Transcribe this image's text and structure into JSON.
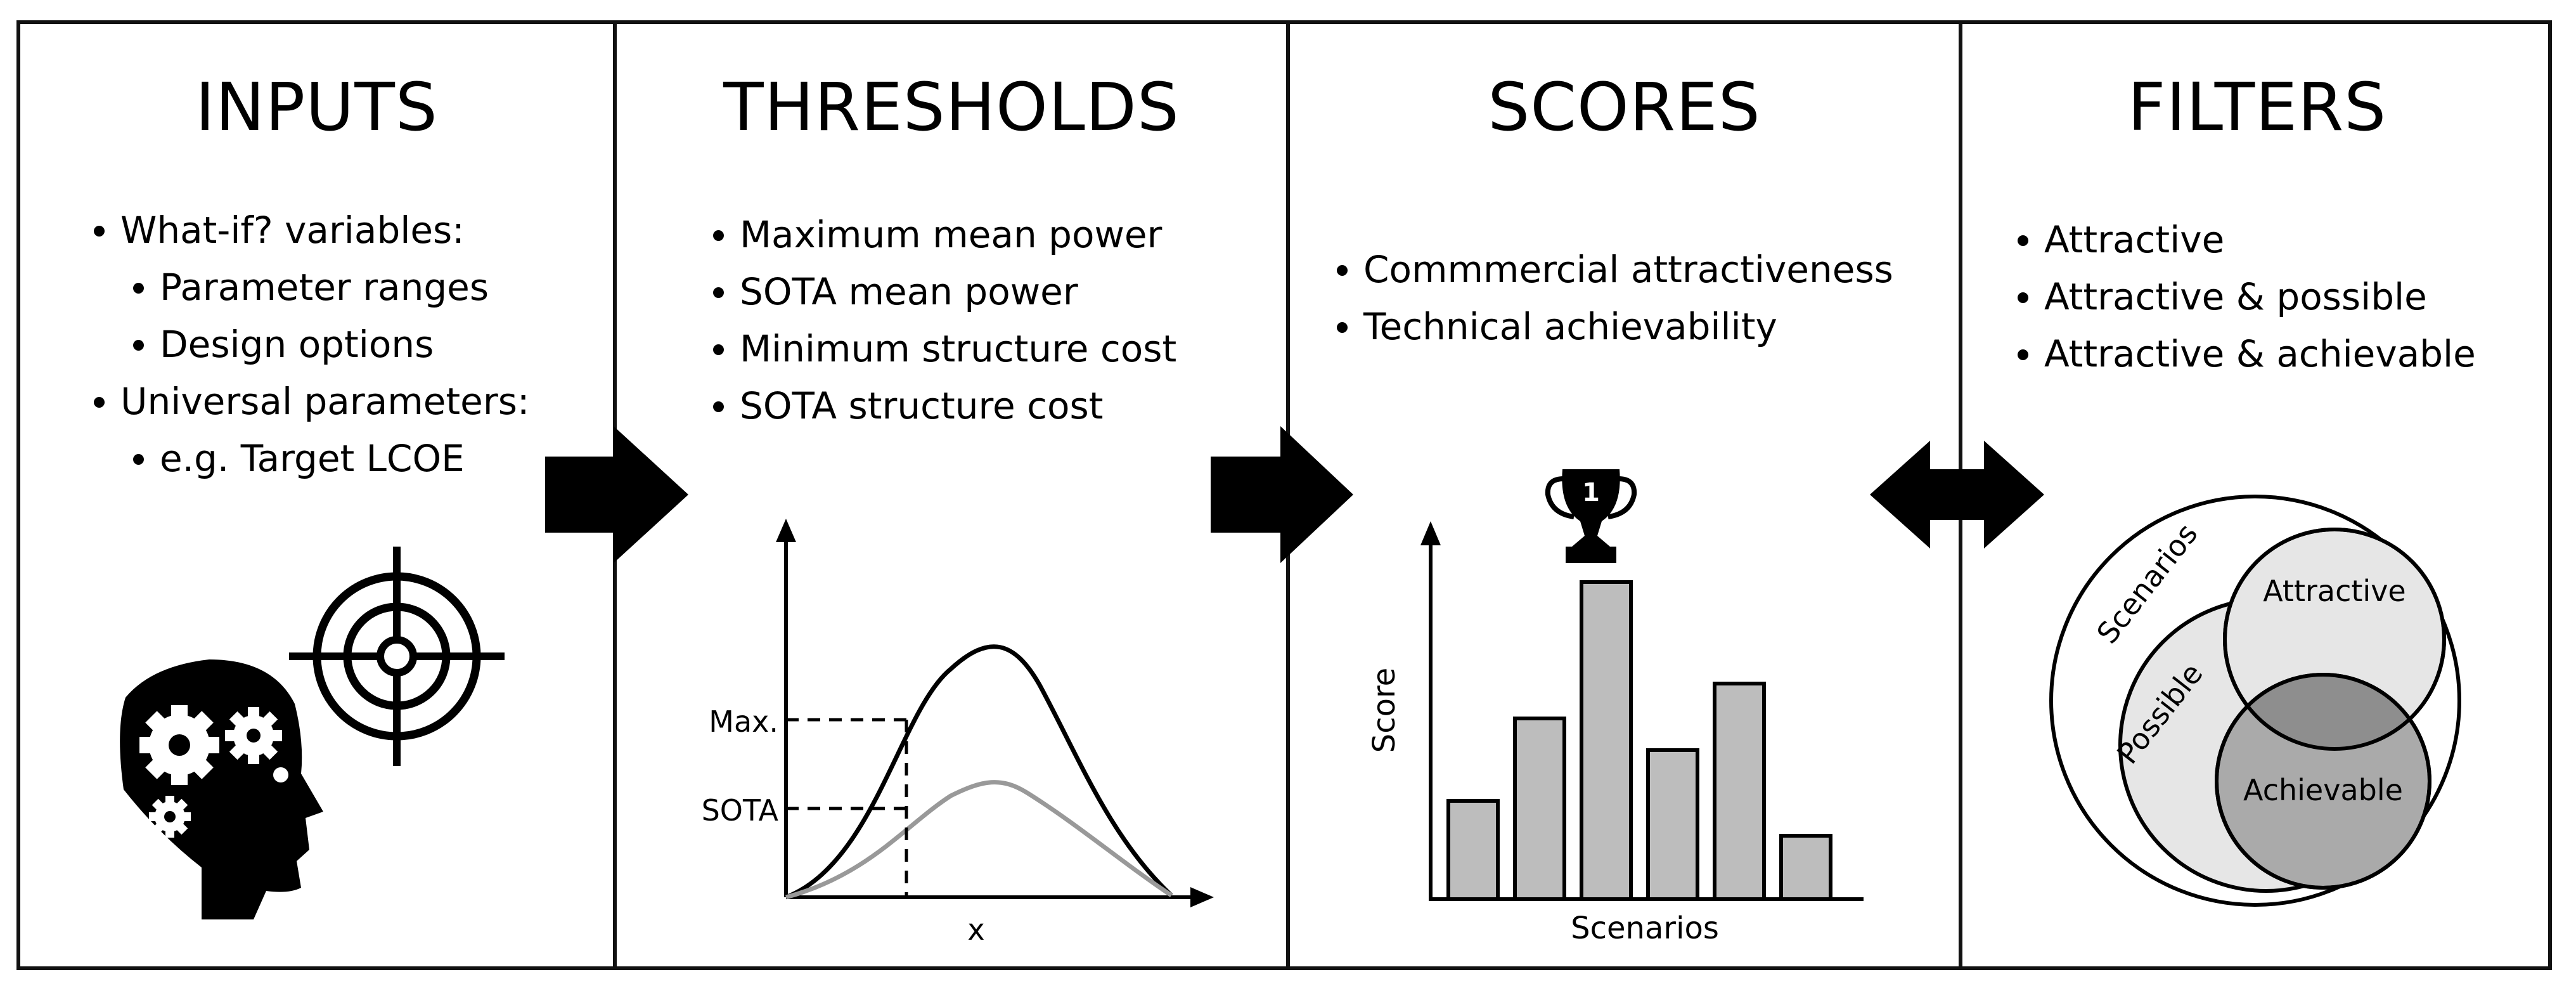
{
  "panels": {
    "inputs": {
      "title": "INPUTS",
      "items": [
        {
          "text": "What-if? variables:",
          "level": 0
        },
        {
          "text": "Parameter ranges",
          "level": 1
        },
        {
          "text": "Design options",
          "level": 1
        },
        {
          "text": "Universal parameters:",
          "level": 0
        },
        {
          "text": "e.g. Target LCOE",
          "level": 1
        }
      ]
    },
    "thresholds": {
      "title": "THRESHOLDS",
      "items": [
        "Maximum mean power",
        "SOTA mean power",
        "Minimum structure cost",
        "SOTA structure cost"
      ],
      "plot": {
        "max_label": "Max.",
        "sota_label": "SOTA",
        "x_label": "x"
      }
    },
    "scores": {
      "title": "SCORES",
      "items": [
        "Commmercial attractiveness",
        "Technical achievability"
      ],
      "trophy_label": "1"
    },
    "filters": {
      "title": "FILTERS",
      "items": [
        "Attractive",
        "Attractive & possible",
        "Attractive & achievable"
      ],
      "venn": {
        "outer": "Scenarios",
        "attractive": "Attractive",
        "possible": "Possible",
        "achievable": "Achievable"
      }
    }
  },
  "chart_data": {
    "type": "bar",
    "xlabel": "Scenarios",
    "ylabel": "Score",
    "categories": [
      "",
      "",
      "",
      "",
      "",
      ""
    ],
    "values": [
      31,
      57,
      100,
      47,
      68,
      20
    ],
    "ylim": [
      0,
      100
    ]
  },
  "colors": {
    "line": "#111111",
    "bar_fill": "#bdbdbd",
    "light_gray": "#e6e6e6",
    "mid_gray": "#9a9a9a",
    "overlap_gray": "#aaaaaa"
  }
}
